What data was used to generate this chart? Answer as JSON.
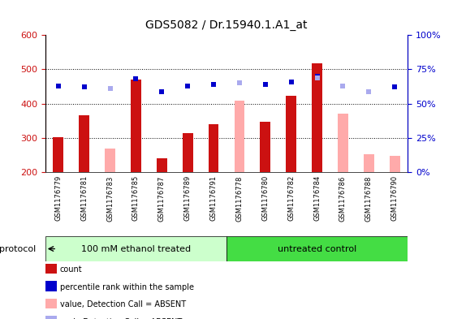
{
  "title": "GDS5082 / Dr.15940.1.A1_at",
  "samples": [
    "GSM1176779",
    "GSM1176781",
    "GSM1176783",
    "GSM1176785",
    "GSM1176787",
    "GSM1176789",
    "GSM1176791",
    "GSM1176778",
    "GSM1176780",
    "GSM1176782",
    "GSM1176784",
    "GSM1176786",
    "GSM1176788",
    "GSM1176790"
  ],
  "count_values": [
    303,
    367,
    null,
    470,
    240,
    313,
    340,
    null,
    348,
    423,
    517,
    null,
    null,
    null
  ],
  "absent_bar_values": [
    null,
    null,
    268,
    null,
    null,
    null,
    null,
    408,
    null,
    null,
    null,
    372,
    252,
    248
  ],
  "percentile_rank": [
    63,
    62,
    null,
    68,
    59,
    63,
    64,
    null,
    64,
    66,
    70,
    null,
    null,
    62
  ],
  "absent_rank_values": [
    null,
    null,
    61,
    null,
    null,
    null,
    null,
    65,
    null,
    null,
    69,
    63,
    59,
    null
  ],
  "group1_count": 7,
  "group2_count": 7,
  "group1_label": "100 mM ethanol treated",
  "group2_label": "untreated control",
  "protocol_label": "protocol",
  "ylim_min": 200,
  "ylim_max": 600,
  "y2lim_min": 0,
  "y2lim_max": 100,
  "yticks": [
    200,
    300,
    400,
    500,
    600
  ],
  "y2ticks": [
    0,
    25,
    50,
    75,
    100
  ],
  "y2ticklabels": [
    "0%",
    "25%",
    "50%",
    "75%",
    "100%"
  ],
  "bar_color_count": "#cc1111",
  "bar_color_absent": "#ffaaaa",
  "dot_color_rank": "#0000cc",
  "dot_color_absent_rank": "#aaaaee",
  "group1_bg": "#ccffcc",
  "group2_bg": "#44dd44",
  "title_fontsize": 10,
  "axis_color_left": "#cc1111",
  "axis_color_right": "#0000cc",
  "bar_width": 0.4,
  "tick_label_bg": "#cccccc",
  "legend_items": [
    {
      "color": "#cc1111",
      "label": "count",
      "type": "square"
    },
    {
      "color": "#0000cc",
      "label": "percentile rank within the sample",
      "type": "square"
    },
    {
      "color": "#ffaaaa",
      "label": "value, Detection Call = ABSENT",
      "type": "square"
    },
    {
      "color": "#aaaaee",
      "label": "rank, Detection Call = ABSENT",
      "type": "square"
    }
  ]
}
